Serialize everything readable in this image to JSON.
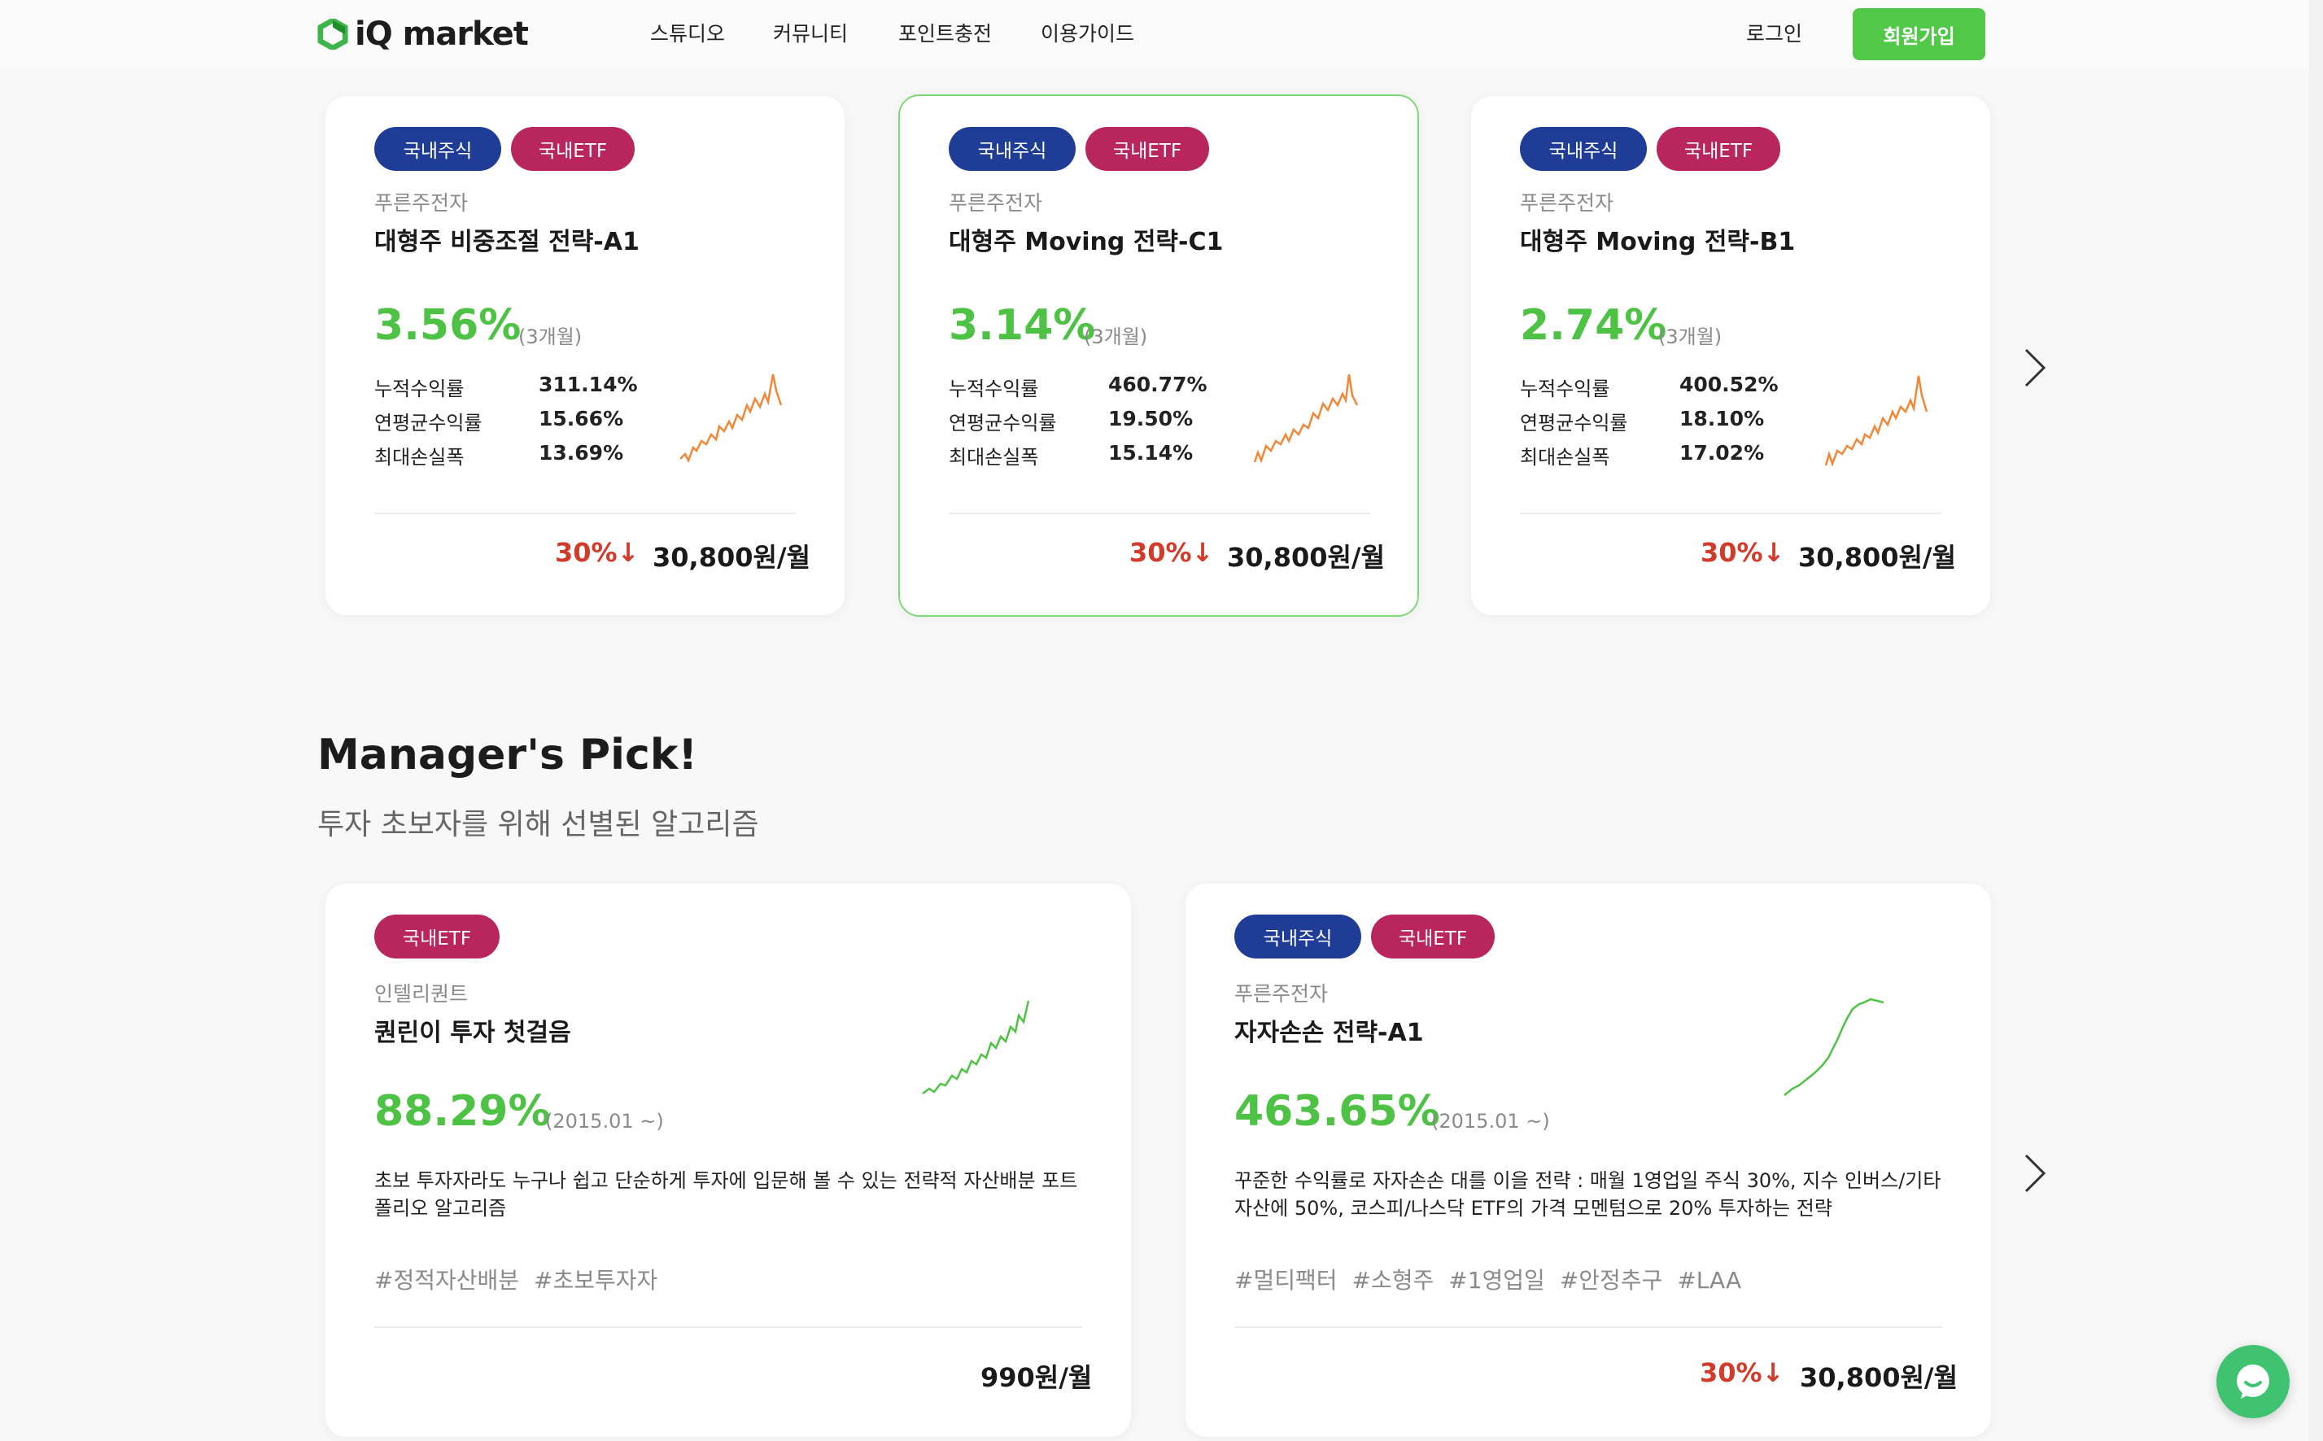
{
  "header": {
    "logo_text": "iQ market",
    "nav": [
      "스튜디오",
      "커뮤니티",
      "포인트충전",
      "이용가이드"
    ],
    "login": "로그인",
    "signup": "회원가입"
  },
  "top_cards": [
    {
      "tags": [
        "국내주식",
        "국내ETF"
      ],
      "provider": "푸른주전자",
      "name": "대형주 비중조절 전략-A1",
      "return": "3.56%",
      "period": "(3개월)",
      "metrics": [
        {
          "label": "누적수익률",
          "value": "311.14%"
        },
        {
          "label": "연평균수익률",
          "value": "15.66%"
        },
        {
          "label": "최대손실폭",
          "value": "13.69%"
        }
      ],
      "discount": "30%",
      "price": "30,800원/월"
    },
    {
      "tags": [
        "국내주식",
        "국내ETF"
      ],
      "provider": "푸른주전자",
      "name": "대형주 Moving 전략-C1",
      "return": "3.14%",
      "period": "(3개월)",
      "metrics": [
        {
          "label": "누적수익률",
          "value": "460.77%"
        },
        {
          "label": "연평균수익률",
          "value": "19.50%"
        },
        {
          "label": "최대손실폭",
          "value": "15.14%"
        }
      ],
      "discount": "30%",
      "price": "30,800원/월"
    },
    {
      "tags": [
        "국내주식",
        "국내ETF"
      ],
      "provider": "푸른주전자",
      "name": "대형주 Moving 전략-B1",
      "return": "2.74%",
      "period": "(3개월)",
      "metrics": [
        {
          "label": "누적수익률",
          "value": "400.52%"
        },
        {
          "label": "연평균수익률",
          "value": "18.10%"
        },
        {
          "label": "최대손실폭",
          "value": "17.02%"
        }
      ],
      "discount": "30%",
      "price": "30,800원/월"
    }
  ],
  "section": {
    "title": "Manager's Pick!",
    "subtitle": "투자 초보자를 위해 선별된 알고리즘"
  },
  "pick_cards": [
    {
      "tags": [
        "국내ETF"
      ],
      "provider": "인텔리퀀트",
      "name": "퀀린이 투자 첫걸음",
      "return": "88.29%",
      "period": "(2015.01 ~)",
      "description": [
        "초보 투자자라도 누구나 쉽고 단순하게 투자에 입문해 볼 수 있는 전략적 자산배분 포트",
        "폴리오 알고리즘"
      ],
      "hashtags": [
        "#정적자산배분",
        "#초보투자자"
      ],
      "price": "990원/월"
    },
    {
      "tags": [
        "국내주식",
        "국내ETF"
      ],
      "provider": "푸른주전자",
      "name": "자자손손 전략-A1",
      "return": "463.65%",
      "period": "(2015.01 ~)",
      "description": [
        "꾸준한 수익률로 자자손손 대를 이을 전략 :  매월 1영업일 주식 30%, 지수 인버스/기타",
        "자산에 50%, 코스피/나스닥 ETF의 가격 모멘텀으로 20% 투자하는 전략"
      ],
      "hashtags": [
        "#멀티팩터",
        "#소형주",
        "#1영업일",
        "#안정추구",
        "#LAA"
      ],
      "discount": "30%",
      "price": "30,800원/월"
    }
  ],
  "icons": {
    "arrow": "chevron-right-icon",
    "chat": "chat-bubble-icon",
    "discount": "down-arrow-icon"
  },
  "colors": {
    "accent_green": "#4ec244",
    "tag_blue": "#1f3d96",
    "tag_red": "#b8265d",
    "discount_red": "#d23a2a",
    "spark_orange": "#f0883a"
  }
}
